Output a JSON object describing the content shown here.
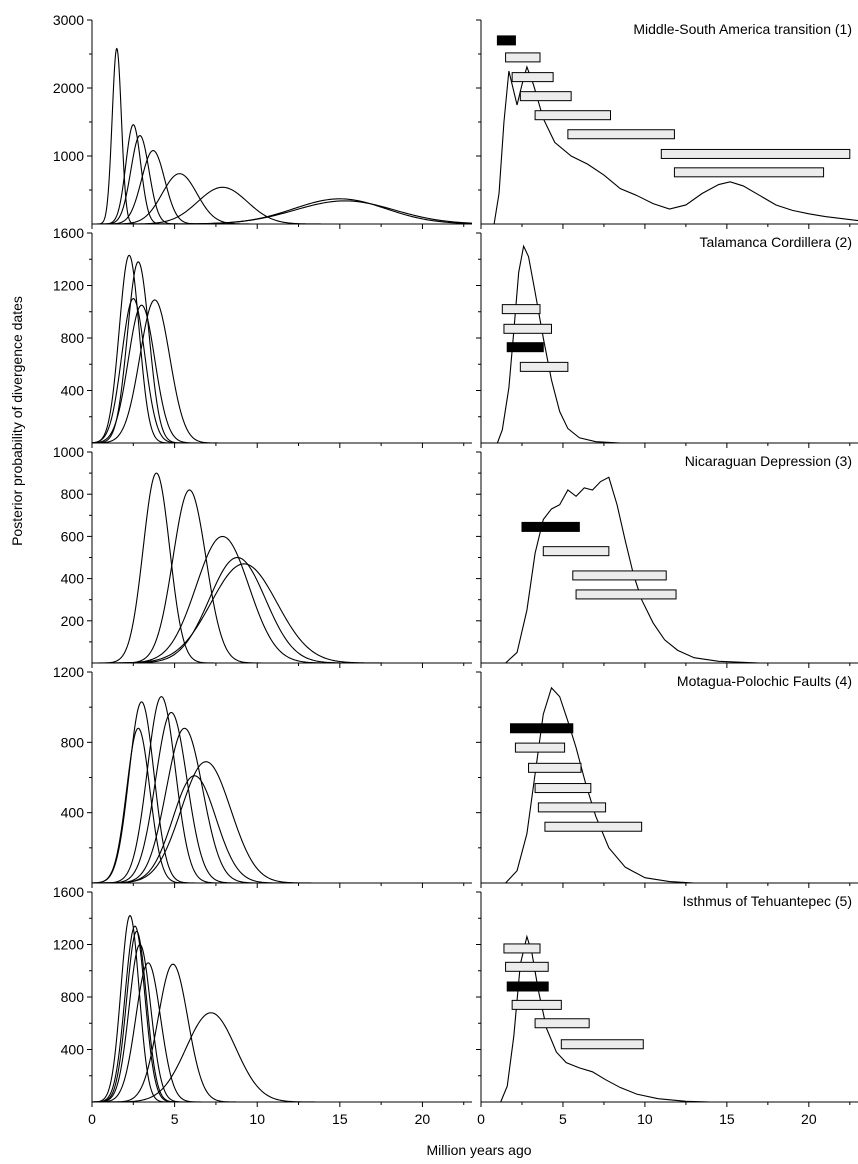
{
  "figure": {
    "ylabel": "Posterior probability of divergence dates",
    "xlabel": "Million years ago",
    "x_ticks": [
      "0",
      "5",
      "10",
      "15",
      "20"
    ],
    "x_range": [
      0,
      23
    ],
    "colors": {
      "line": "#000000",
      "bar_dark": "#000000",
      "bar_light": "#ececec"
    }
  },
  "chart_data": [
    {
      "title": "Middle-South America transition (1)",
      "type": "line",
      "ylim": [
        0,
        3000
      ],
      "yticks": [
        1000,
        2000,
        3000
      ],
      "left_curves": [
        {
          "mu": 1.5,
          "sd": 0.28,
          "peak": 2580
        },
        {
          "mu": 2.5,
          "sd": 0.45,
          "peak": 1460
        },
        {
          "mu": 2.9,
          "sd": 0.55,
          "peak": 1300
        },
        {
          "mu": 3.7,
          "sd": 0.7,
          "peak": 1080
        },
        {
          "mu": 5.3,
          "sd": 1.05,
          "peak": 740
        },
        {
          "mu": 7.9,
          "sd": 1.5,
          "peak": 540
        },
        {
          "mu": 15.0,
          "sd": 2.8,
          "peak": 370
        },
        {
          "mu": 15.3,
          "sd": 3.0,
          "peak": 340
        }
      ],
      "right_curve": [
        [
          0.8,
          0
        ],
        [
          1.1,
          450
        ],
        [
          1.4,
          1500
        ],
        [
          1.7,
          2250
        ],
        [
          2.0,
          1950
        ],
        [
          2.2,
          1750
        ],
        [
          2.5,
          2050
        ],
        [
          2.8,
          2310
        ],
        [
          3.2,
          2050
        ],
        [
          3.8,
          1550
        ],
        [
          4.5,
          1200
        ],
        [
          5.5,
          1000
        ],
        [
          6.5,
          880
        ],
        [
          7.5,
          720
        ],
        [
          8.5,
          520
        ],
        [
          9.5,
          420
        ],
        [
          10.5,
          300
        ],
        [
          11.5,
          220
        ],
        [
          12.5,
          280
        ],
        [
          13.5,
          450
        ],
        [
          14.5,
          580
        ],
        [
          15.2,
          620
        ],
        [
          16.0,
          560
        ],
        [
          17.0,
          420
        ],
        [
          18.0,
          280
        ],
        [
          19.0,
          200
        ],
        [
          20.0,
          150
        ],
        [
          21.0,
          110
        ],
        [
          22.0,
          80
        ],
        [
          23.0,
          50
        ]
      ],
      "bars": [
        {
          "x0": 1.0,
          "x1": 2.1,
          "dark": true,
          "y": 2700
        },
        {
          "x0": 1.5,
          "x1": 3.6,
          "dark": false,
          "y": 2450
        },
        {
          "x0": 1.9,
          "x1": 4.4,
          "dark": false,
          "y": 2160
        },
        {
          "x0": 2.4,
          "x1": 5.5,
          "dark": false,
          "y": 1880
        },
        {
          "x0": 3.3,
          "x1": 7.9,
          "dark": false,
          "y": 1600
        },
        {
          "x0": 5.3,
          "x1": 11.8,
          "dark": false,
          "y": 1320
        },
        {
          "x0": 11.0,
          "x1": 22.5,
          "dark": false,
          "y": 1030
        },
        {
          "x0": 11.8,
          "x1": 20.9,
          "dark": false,
          "y": 760
        }
      ]
    },
    {
      "title": "Talamanca Cordillera (2)",
      "type": "line",
      "ylim": [
        0,
        1600
      ],
      "yticks": [
        400,
        800,
        1200,
        1600
      ],
      "left_curves": [
        {
          "mu": 2.25,
          "sd": 0.6,
          "peak": 1430
        },
        {
          "mu": 2.8,
          "sd": 0.65,
          "peak": 1380
        },
        {
          "mu": 2.5,
          "sd": 0.7,
          "peak": 1100
        },
        {
          "mu": 3.0,
          "sd": 0.8,
          "peak": 1050
        },
        {
          "mu": 3.8,
          "sd": 0.9,
          "peak": 1090
        }
      ],
      "right_curve": [
        [
          1.0,
          0
        ],
        [
          1.3,
          100
        ],
        [
          1.7,
          420
        ],
        [
          2.0,
          850
        ],
        [
          2.3,
          1300
        ],
        [
          2.6,
          1500
        ],
        [
          2.9,
          1420
        ],
        [
          3.3,
          1150
        ],
        [
          3.8,
          800
        ],
        [
          4.3,
          480
        ],
        [
          4.8,
          240
        ],
        [
          5.3,
          110
        ],
        [
          6.0,
          40
        ],
        [
          7.0,
          10
        ],
        [
          8.5,
          0
        ]
      ],
      "bars": [
        {
          "x0": 1.3,
          "x1": 3.6,
          "dark": false,
          "y": 1020
        },
        {
          "x0": 1.4,
          "x1": 4.3,
          "dark": false,
          "y": 870
        },
        {
          "x0": 1.6,
          "x1": 3.8,
          "dark": true,
          "y": 730
        },
        {
          "x0": 2.4,
          "x1": 5.3,
          "dark": false,
          "y": 580
        }
      ]
    },
    {
      "title": "Nicaraguan Depression (3)",
      "type": "line",
      "ylim": [
        0,
        1000
      ],
      "yticks": [
        200,
        400,
        600,
        800,
        1000
      ],
      "left_curves": [
        {
          "mu": 3.9,
          "sd": 0.8,
          "peak": 900
        },
        {
          "mu": 5.9,
          "sd": 1.0,
          "peak": 820
        },
        {
          "mu": 7.9,
          "sd": 1.6,
          "peak": 600
        },
        {
          "mu": 8.8,
          "sd": 1.7,
          "peak": 500
        },
        {
          "mu": 9.2,
          "sd": 2.0,
          "peak": 470
        }
      ],
      "right_curve": [
        [
          1.5,
          0
        ],
        [
          2.2,
          50
        ],
        [
          2.8,
          250
        ],
        [
          3.3,
          520
        ],
        [
          3.8,
          680
        ],
        [
          4.3,
          730
        ],
        [
          4.8,
          750
        ],
        [
          5.3,
          820
        ],
        [
          5.8,
          790
        ],
        [
          6.3,
          830
        ],
        [
          6.8,
          820
        ],
        [
          7.3,
          860
        ],
        [
          7.8,
          880
        ],
        [
          8.3,
          750
        ],
        [
          8.8,
          580
        ],
        [
          9.3,
          420
        ],
        [
          9.8,
          300
        ],
        [
          10.5,
          190
        ],
        [
          11.2,
          110
        ],
        [
          12.0,
          60
        ],
        [
          13.0,
          25
        ],
        [
          14.5,
          8
        ],
        [
          17.0,
          0
        ]
      ],
      "bars": [
        {
          "x0": 2.5,
          "x1": 6.0,
          "dark": true,
          "y": 645
        },
        {
          "x0": 3.8,
          "x1": 7.8,
          "dark": false,
          "y": 530
        },
        {
          "x0": 5.6,
          "x1": 11.3,
          "dark": false,
          "y": 415
        },
        {
          "x0": 5.8,
          "x1": 11.9,
          "dark": false,
          "y": 325
        }
      ]
    },
    {
      "title": "Motagua-Polochic Faults (4)",
      "type": "line",
      "ylim": [
        0,
        1200
      ],
      "yticks": [
        400,
        800,
        1200
      ],
      "left_curves": [
        {
          "mu": 3.0,
          "sd": 0.75,
          "peak": 1030
        },
        {
          "mu": 4.2,
          "sd": 0.85,
          "peak": 1060
        },
        {
          "mu": 2.8,
          "sd": 0.7,
          "peak": 880
        },
        {
          "mu": 4.8,
          "sd": 0.95,
          "peak": 970
        },
        {
          "mu": 5.6,
          "sd": 1.1,
          "peak": 880
        },
        {
          "mu": 6.2,
          "sd": 1.3,
          "peak": 610
        },
        {
          "mu": 6.9,
          "sd": 1.5,
          "peak": 690
        }
      ],
      "right_curve": [
        [
          1.5,
          0
        ],
        [
          2.2,
          70
        ],
        [
          2.8,
          280
        ],
        [
          3.3,
          620
        ],
        [
          3.8,
          960
        ],
        [
          4.3,
          1110
        ],
        [
          4.8,
          1060
        ],
        [
          5.3,
          920
        ],
        [
          5.8,
          770
        ],
        [
          6.4,
          560
        ],
        [
          7.0,
          380
        ],
        [
          7.8,
          200
        ],
        [
          8.8,
          90
        ],
        [
          10.0,
          30
        ],
        [
          11.5,
          8
        ],
        [
          13.0,
          0
        ]
      ],
      "bars": [
        {
          "x0": 1.8,
          "x1": 5.6,
          "dark": true,
          "y": 880
        },
        {
          "x0": 2.1,
          "x1": 5.1,
          "dark": false,
          "y": 770
        },
        {
          "x0": 2.9,
          "x1": 6.1,
          "dark": false,
          "y": 655
        },
        {
          "x0": 3.3,
          "x1": 6.7,
          "dark": false,
          "y": 540
        },
        {
          "x0": 3.5,
          "x1": 7.6,
          "dark": false,
          "y": 430
        },
        {
          "x0": 3.9,
          "x1": 9.8,
          "dark": false,
          "y": 320
        }
      ]
    },
    {
      "title": "Isthmus of Tehuantepec (5)",
      "type": "line",
      "ylim": [
        0,
        1600
      ],
      "yticks": [
        400,
        800,
        1200,
        1600
      ],
      "left_curves": [
        {
          "mu": 2.3,
          "sd": 0.55,
          "peak": 1420
        },
        {
          "mu": 2.6,
          "sd": 0.6,
          "peak": 1340
        },
        {
          "mu": 2.7,
          "sd": 0.6,
          "peak": 1300
        },
        {
          "mu": 2.9,
          "sd": 0.65,
          "peak": 1200
        },
        {
          "mu": 3.4,
          "sd": 0.75,
          "peak": 1060
        },
        {
          "mu": 4.9,
          "sd": 0.9,
          "peak": 1050
        },
        {
          "mu": 7.2,
          "sd": 1.5,
          "peak": 680
        }
      ],
      "right_curve": [
        [
          1.2,
          0
        ],
        [
          1.6,
          120
        ],
        [
          2.0,
          500
        ],
        [
          2.4,
          1050
        ],
        [
          2.8,
          1260
        ],
        [
          3.1,
          1140
        ],
        [
          3.5,
          850
        ],
        [
          4.0,
          560
        ],
        [
          4.6,
          380
        ],
        [
          5.2,
          300
        ],
        [
          6.0,
          260
        ],
        [
          6.8,
          230
        ],
        [
          7.6,
          170
        ],
        [
          8.5,
          110
        ],
        [
          9.5,
          60
        ],
        [
          10.8,
          25
        ],
        [
          12.5,
          5
        ],
        [
          14.0,
          0
        ]
      ],
      "bars": [
        {
          "x0": 1.4,
          "x1": 3.6,
          "dark": false,
          "y": 1170
        },
        {
          "x0": 1.5,
          "x1": 4.1,
          "dark": false,
          "y": 1030
        },
        {
          "x0": 1.6,
          "x1": 4.1,
          "dark": true,
          "y": 880
        },
        {
          "x0": 1.9,
          "x1": 4.9,
          "dark": false,
          "y": 740
        },
        {
          "x0": 3.3,
          "x1": 6.6,
          "dark": false,
          "y": 600
        },
        {
          "x0": 4.9,
          "x1": 9.9,
          "dark": false,
          "y": 440
        }
      ]
    }
  ]
}
